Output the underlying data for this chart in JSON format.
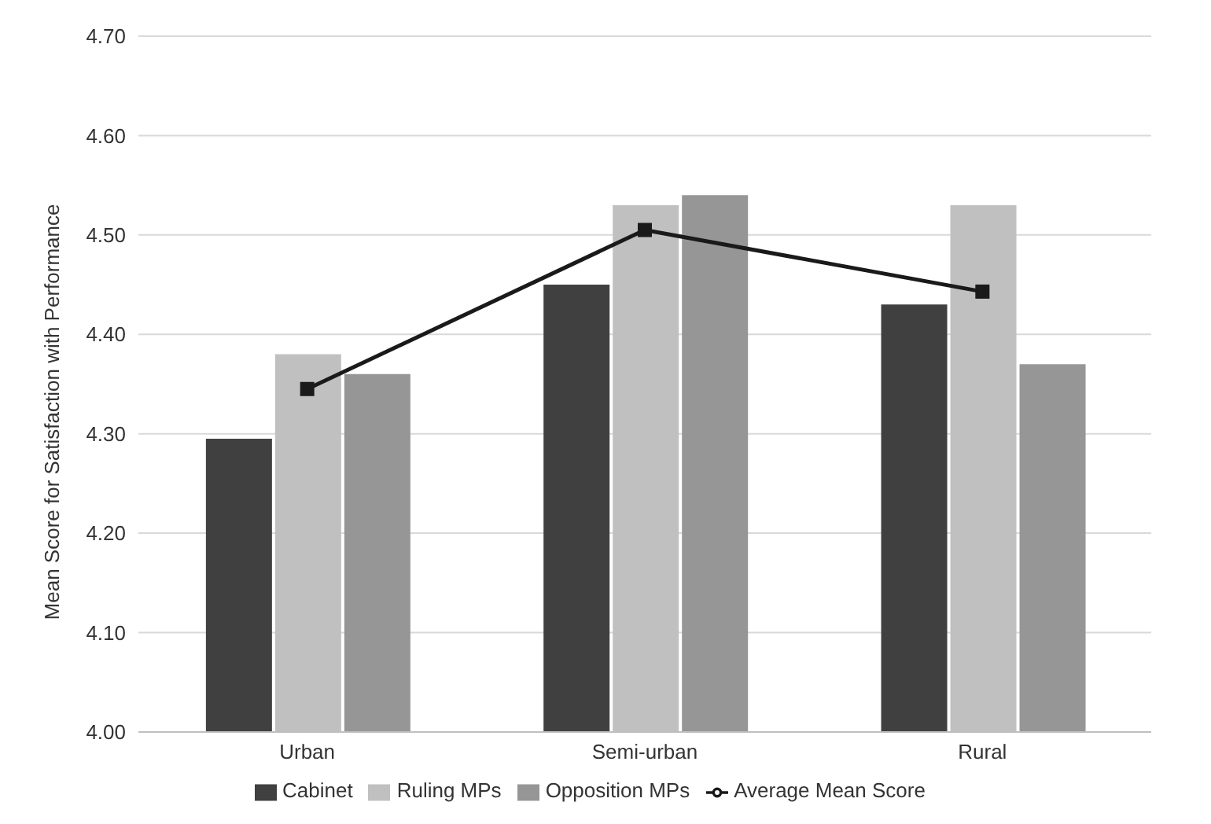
{
  "chart_data": {
    "type": "bar",
    "ylabel": "Mean Score for Satisfaction with Performance",
    "categories": [
      "Urban",
      "Semi-urban",
      "Rural"
    ],
    "series": [
      {
        "name": "Cabinet",
        "color": "#404040",
        "values": [
          4.295,
          4.45,
          4.43
        ]
      },
      {
        "name": "Ruling MPs",
        "color": "#c0c0c0",
        "values": [
          4.38,
          4.53,
          4.53
        ]
      },
      {
        "name": "Opposition MPs",
        "color": "#969696",
        "values": [
          4.36,
          4.54,
          4.37
        ]
      },
      {
        "name": "Average Mean Score",
        "type": "line",
        "color": "#1a1a1a",
        "values": [
          4.345,
          4.505,
          4.443
        ],
        "marker": "square"
      }
    ],
    "ylim": [
      4.0,
      4.7
    ],
    "yticks": [
      {
        "value": 4.0,
        "label": "4.00"
      },
      {
        "value": 4.1,
        "label": "4.10"
      },
      {
        "value": 4.2,
        "label": "4.20"
      },
      {
        "value": 4.3,
        "label": "4.30"
      },
      {
        "value": 4.4,
        "label": "4.40"
      },
      {
        "value": 4.5,
        "label": "4.50"
      },
      {
        "value": 4.6,
        "label": "4.60"
      },
      {
        "value": 4.7,
        "label": "4.70"
      }
    ],
    "grid": "y",
    "legend": "bottom"
  }
}
